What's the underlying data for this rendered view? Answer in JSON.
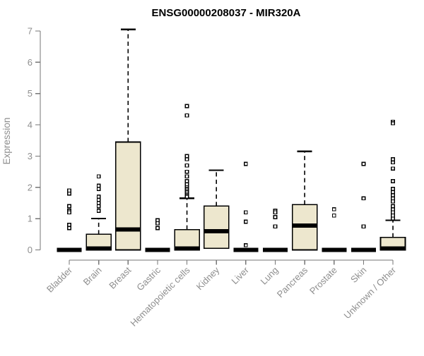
{
  "chart_data": {
    "type": "boxplot",
    "title": "ENSG00000208037 - MIR320A",
    "ylabel": "Expression",
    "xlabel": "",
    "ylim": [
      0,
      7
    ],
    "yticks": [
      0,
      1,
      2,
      3,
      4,
      5,
      6,
      7
    ],
    "grid": false,
    "legend": "none",
    "colors": {
      "box_fill": "#EDE7CE",
      "box_stroke": "#000000",
      "median": "#000000",
      "axis": "#767676",
      "label": "#8e8e8e",
      "background": "#ffffff"
    },
    "categories": [
      "Bladder",
      "Brain",
      "Breast",
      "Gastric",
      "Hematopoietic cells",
      "Kidney",
      "Liver",
      "Lung",
      "Pancreas",
      "Prostate",
      "Skin",
      "Unknown / Other"
    ],
    "series": [
      {
        "name": "Bladder",
        "q1": 0,
        "median": 0,
        "q3": 0,
        "whisker_low": 0,
        "whisker_high": 0,
        "outliers": [
          1.9,
          1.8,
          1.4,
          1.25,
          1.2,
          0.8,
          0.7
        ]
      },
      {
        "name": "Brain",
        "q1": 0,
        "median": 0.05,
        "q3": 0.5,
        "whisker_low": 0,
        "whisker_high": 1.0,
        "outliers": [
          2.35,
          2.05,
          1.95,
          1.7,
          1.6,
          1.5,
          1.4,
          1.25
        ]
      },
      {
        "name": "Breast",
        "q1": 0,
        "median": 0.65,
        "q3": 3.45,
        "whisker_low": 0,
        "whisker_high": 7.05,
        "outliers": []
      },
      {
        "name": "Gastric",
        "q1": 0,
        "median": 0,
        "q3": 0,
        "whisker_low": 0,
        "whisker_high": 0,
        "outliers": [
          0.95,
          0.85,
          0.7
        ]
      },
      {
        "name": "Hematopoietic cells",
        "q1": 0,
        "median": 0.05,
        "q3": 0.65,
        "whisker_low": 0,
        "whisker_high": 1.65,
        "outliers": [
          4.6,
          4.3,
          3.0,
          2.9,
          2.7,
          2.5,
          2.35,
          2.2,
          2.1,
          2.0,
          1.95,
          1.9,
          1.85,
          1.8,
          1.75,
          1.7
        ]
      },
      {
        "name": "Kidney",
        "q1": 0.05,
        "median": 0.6,
        "q3": 1.4,
        "whisker_low": 0.05,
        "whisker_high": 2.55,
        "outliers": []
      },
      {
        "name": "Liver",
        "q1": 0,
        "median": 0,
        "q3": 0,
        "whisker_low": 0,
        "whisker_high": 0,
        "outliers": [
          2.75,
          1.2,
          0.9,
          0.15
        ]
      },
      {
        "name": "Lung",
        "q1": 0,
        "median": 0,
        "q3": 0,
        "whisker_low": 0,
        "whisker_high": 0,
        "outliers": [
          1.25,
          1.2,
          1.05,
          0.75
        ]
      },
      {
        "name": "Pancreas",
        "q1": 0,
        "median": 0.78,
        "q3": 1.45,
        "whisker_low": 0,
        "whisker_high": 3.15,
        "outliers": []
      },
      {
        "name": "Prostate",
        "q1": 0,
        "median": 0,
        "q3": 0,
        "whisker_low": 0,
        "whisker_high": 0,
        "outliers": [
          1.3,
          1.1
        ]
      },
      {
        "name": "Skin",
        "q1": 0,
        "median": 0,
        "q3": 0,
        "whisker_low": 0,
        "whisker_high": 0,
        "outliers": [
          2.75,
          1.65,
          0.75
        ]
      },
      {
        "name": "Unknown / Other",
        "q1": 0,
        "median": 0.05,
        "q3": 0.4,
        "whisker_low": 0,
        "whisker_high": 0.95,
        "outliers": [
          4.1,
          4.05,
          2.9,
          2.8,
          2.6,
          2.2,
          1.95,
          1.85,
          1.75,
          1.65,
          1.55,
          1.4,
          1.3,
          1.2,
          1.1,
          1.0
        ]
      }
    ]
  }
}
